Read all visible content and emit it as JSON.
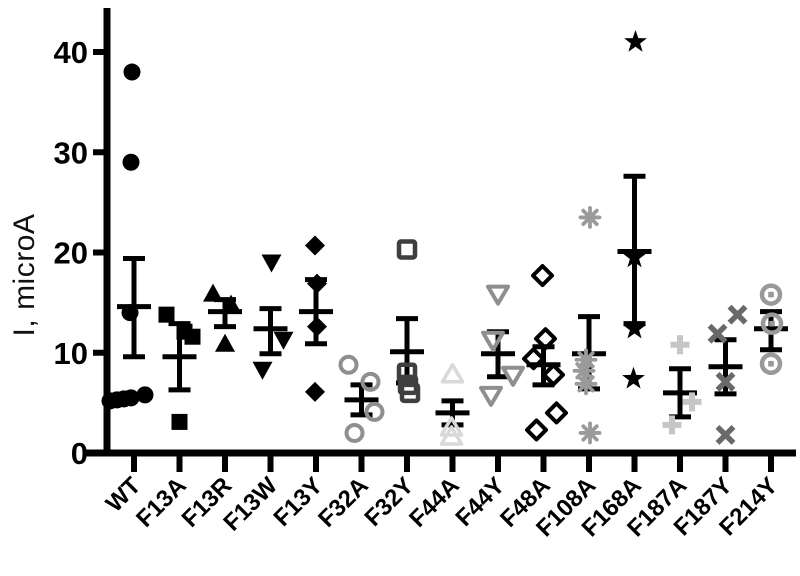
{
  "chart_data": {
    "type": "scatter",
    "title": "",
    "xlabel": "",
    "ylabel": "I, microA",
    "ylim": [
      0,
      44
    ],
    "yticks": [
      0,
      10,
      20,
      30,
      40
    ],
    "grid": false,
    "legend": "none",
    "error_bar_color": "#000000",
    "categories": [
      "WT",
      "F13A",
      "F13R",
      "F13W",
      "F13Y",
      "F32A",
      "F32Y",
      "F44A",
      "F44Y",
      "F48A",
      "F108A",
      "F168A",
      "F187A",
      "F187Y",
      "F214Y"
    ],
    "groups": [
      {
        "label": "WT",
        "marker": "filled-circle",
        "color": "#000000",
        "mean": 14.6,
        "err_low": 9.6,
        "err_high": 19.4,
        "points": [
          [
            38,
            -2
          ],
          [
            29,
            -3
          ],
          [
            14,
            -4
          ],
          [
            5.2,
            -24
          ],
          [
            5.3,
            -17
          ],
          [
            5.4,
            -10
          ],
          [
            5.5,
            -3
          ],
          [
            5.8,
            11
          ]
        ]
      },
      {
        "label": "F13A",
        "marker": "filled-square",
        "color": "#000000",
        "mean": 9.6,
        "err_low": 6.3,
        "err_high": 12.9,
        "points": [
          [
            13.8,
            -13
          ],
          [
            12.1,
            5
          ],
          [
            11.6,
            13
          ],
          [
            3.1,
            0
          ]
        ]
      },
      {
        "label": "F13R",
        "marker": "filled-triangle-up",
        "color": "#000000",
        "mean": 14.1,
        "err_low": 12.6,
        "err_high": 15.3,
        "points": [
          [
            15.9,
            -12
          ],
          [
            14.8,
            6
          ],
          [
            10.9,
            0
          ]
        ]
      },
      {
        "label": "F13W",
        "marker": "filled-triangle-down",
        "color": "#000000",
        "mean": 12.4,
        "err_low": 9.9,
        "err_high": 14.4,
        "points": [
          [
            19.0,
            1
          ],
          [
            11.3,
            13
          ],
          [
            8.3,
            -8
          ]
        ]
      },
      {
        "label": "F13Y",
        "marker": "filled-diamond",
        "color": "#000000",
        "mean": 14.1,
        "err_low": 10.9,
        "err_high": 17.3,
        "points": [
          [
            20.7,
            -1
          ],
          [
            16.9,
            1
          ],
          [
            12.6,
            1
          ],
          [
            6.1,
            -1
          ]
        ]
      },
      {
        "label": "F32A",
        "marker": "open-circle",
        "color": "#8f8f8f",
        "mean": 5.3,
        "err_low": 3.8,
        "err_high": 6.8,
        "points": [
          [
            8.8,
            -13
          ],
          [
            7.1,
            9
          ],
          [
            4.1,
            13
          ],
          [
            2.0,
            -7
          ]
        ]
      },
      {
        "label": "F32Y",
        "marker": "open-square",
        "color": "#3f3f3f",
        "mean": 10.1,
        "err_low": 7.0,
        "err_high": 13.4,
        "points": [
          [
            20.3,
            0
          ],
          [
            8.0,
            0
          ],
          [
            6.8,
            1
          ],
          [
            6.0,
            3
          ]
        ]
      },
      {
        "label": "F44A",
        "marker": "open-triangle-up",
        "color": "#d9d9d9",
        "mean": 4.0,
        "err_low": 2.8,
        "err_high": 5.2,
        "points": [
          [
            7.8,
            0
          ],
          [
            2.5,
            -1
          ],
          [
            1.6,
            -1
          ]
        ]
      },
      {
        "label": "F44Y",
        "marker": "open-triangle-down",
        "color": "#8f8f8f",
        "mean": 9.9,
        "err_low": 7.6,
        "err_high": 12.1,
        "points": [
          [
            15.9,
            0
          ],
          [
            11.3,
            -5
          ],
          [
            7.8,
            15
          ],
          [
            5.8,
            -7
          ]
        ]
      },
      {
        "label": "F48A",
        "marker": "open-diamond",
        "color": "#000000",
        "mean": 8.8,
        "err_low": 6.8,
        "err_high": 10.6,
        "points": [
          [
            17.7,
            -1
          ],
          [
            11.4,
            2
          ],
          [
            9.4,
            -10
          ],
          [
            7.8,
            10
          ],
          [
            4.0,
            13
          ],
          [
            2.3,
            -7
          ]
        ]
      },
      {
        "label": "F108A",
        "marker": "asterisk",
        "color": "#9a9a9a",
        "mean": 9.9,
        "err_low": 6.4,
        "err_high": 13.6,
        "points": [
          [
            23.5,
            1
          ],
          [
            9.3,
            -3
          ],
          [
            8.2,
            -5
          ],
          [
            6.9,
            -3
          ],
          [
            2.0,
            1
          ]
        ]
      },
      {
        "label": "F168A",
        "marker": "filled-star",
        "color": "#000000",
        "mean": 20.1,
        "err_low": 12.9,
        "err_high": 27.6,
        "points": [
          [
            41,
            1
          ],
          [
            19.5,
            0
          ],
          [
            12.4,
            0
          ],
          [
            7.4,
            -1
          ]
        ]
      },
      {
        "label": "F187A",
        "marker": "plus",
        "color": "#c6c6c6",
        "mean": 6.0,
        "err_low": 3.6,
        "err_high": 8.4,
        "points": [
          [
            10.8,
            0
          ],
          [
            5.1,
            12
          ],
          [
            2.8,
            -8
          ]
        ]
      },
      {
        "label": "F187Y",
        "marker": "x-mark",
        "color": "#696969",
        "mean": 8.6,
        "err_low": 5.9,
        "err_high": 11.3,
        "points": [
          [
            13.8,
            12
          ],
          [
            11.9,
            -8
          ],
          [
            7.1,
            0
          ],
          [
            1.8,
            0
          ]
        ]
      },
      {
        "label": "F214Y",
        "marker": "circle-dot",
        "color": "#999999",
        "mean": 12.4,
        "err_low": 10.3,
        "err_high": 14.1,
        "points": [
          [
            15.8,
            0
          ],
          [
            12.9,
            1
          ],
          [
            8.9,
            0
          ]
        ]
      }
    ]
  }
}
